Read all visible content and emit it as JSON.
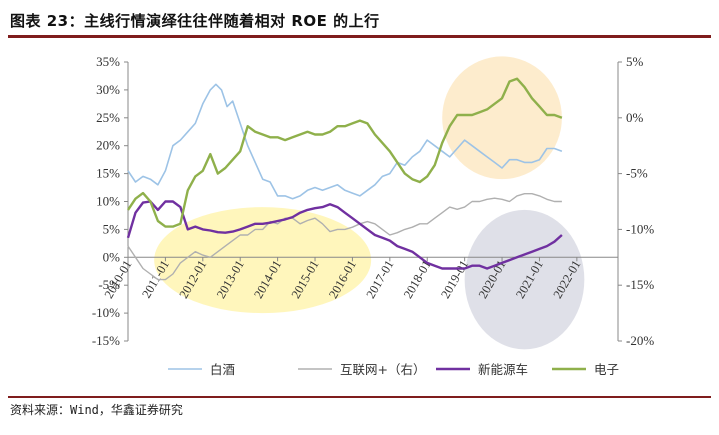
{
  "figure": {
    "title": "图表 23：主线行情演绎往往伴随着相对 ROE 的上行",
    "source": "资料来源：Wind，华鑫证券研究"
  },
  "colors": {
    "baijiu": "#9dc3e6",
    "internet": "#b0b0b0",
    "nev": "#7030a0",
    "electronics": "#8fb04b",
    "highlight_yellow": "#fff5b0",
    "highlight_orange": "#fde9c4",
    "highlight_gray": "#d9dbe4",
    "frame": "#7f1d1d"
  },
  "chart_data": {
    "type": "line",
    "x_range": [
      2010.0,
      2023.1
    ],
    "x_ticks": [
      {
        "x": 2010.0,
        "label": "2010-01"
      },
      {
        "x": 2011.0,
        "label": "2011-01"
      },
      {
        "x": 2012.0,
        "label": "2012-01"
      },
      {
        "x": 2013.0,
        "label": "2013-01"
      },
      {
        "x": 2014.0,
        "label": "2014-01"
      },
      {
        "x": 2015.0,
        "label": "2015-01"
      },
      {
        "x": 2016.0,
        "label": "2016-01"
      },
      {
        "x": 2017.0,
        "label": "2017-01"
      },
      {
        "x": 2018.0,
        "label": "2018-01"
      },
      {
        "x": 2019.0,
        "label": "2019-01"
      },
      {
        "x": 2020.0,
        "label": "2020-01"
      },
      {
        "x": 2021.0,
        "label": "2021-01"
      },
      {
        "x": 2022.0,
        "label": "2022-01"
      }
    ],
    "y_left": {
      "min": -15,
      "max": 35,
      "ticks": [
        -15,
        -10,
        -5,
        0,
        5,
        10,
        15,
        20,
        25,
        30,
        35
      ],
      "labels": [
        "-15%",
        "-10%",
        "-5%",
        "0%",
        "5%",
        "10%",
        "15%",
        "20%",
        "25%",
        "30%",
        "35%"
      ]
    },
    "y_right": {
      "min": -20,
      "max": 5,
      "ticks": [
        -20,
        -15,
        -10,
        -5,
        0,
        5
      ],
      "labels": [
        "-20%",
        "-15%",
        "-10%",
        "-5%",
        "0%",
        "5%"
      ]
    },
    "grid": false,
    "legend_position": "bottom",
    "series": [
      {
        "name": "白酒",
        "axis": "left",
        "color_key": "baijiu",
        "points": [
          [
            2010.0,
            15.5
          ],
          [
            2010.2,
            13.5
          ],
          [
            2010.4,
            14.5
          ],
          [
            2010.6,
            14.0
          ],
          [
            2010.8,
            13.0
          ],
          [
            2011.0,
            15.5
          ],
          [
            2011.2,
            20.0
          ],
          [
            2011.4,
            21.0
          ],
          [
            2011.6,
            22.5
          ],
          [
            2011.8,
            24.0
          ],
          [
            2012.0,
            27.5
          ],
          [
            2012.2,
            30.0
          ],
          [
            2012.35,
            31.0
          ],
          [
            2012.5,
            30.0
          ],
          [
            2012.65,
            27.0
          ],
          [
            2012.8,
            28.0
          ],
          [
            2013.0,
            24.0
          ],
          [
            2013.2,
            20.0
          ],
          [
            2013.4,
            17.0
          ],
          [
            2013.6,
            14.0
          ],
          [
            2013.8,
            13.5
          ],
          [
            2014.0,
            11.0
          ],
          [
            2014.2,
            11.0
          ],
          [
            2014.4,
            10.5
          ],
          [
            2014.6,
            11.0
          ],
          [
            2014.8,
            12.0
          ],
          [
            2015.0,
            12.5
          ],
          [
            2015.2,
            12.0
          ],
          [
            2015.4,
            12.5
          ],
          [
            2015.6,
            13.0
          ],
          [
            2015.8,
            12.0
          ],
          [
            2016.0,
            11.5
          ],
          [
            2016.2,
            11.0
          ],
          [
            2016.4,
            12.0
          ],
          [
            2016.6,
            13.0
          ],
          [
            2016.8,
            14.5
          ],
          [
            2017.0,
            15.0
          ],
          [
            2017.2,
            17.0
          ],
          [
            2017.4,
            16.5
          ],
          [
            2017.6,
            18.0
          ],
          [
            2017.8,
            19.0
          ],
          [
            2018.0,
            21.0
          ],
          [
            2018.2,
            20.0
          ],
          [
            2018.4,
            19.0
          ],
          [
            2018.6,
            18.0
          ],
          [
            2018.8,
            19.5
          ],
          [
            2019.0,
            21.0
          ],
          [
            2019.2,
            20.0
          ],
          [
            2019.4,
            19.0
          ],
          [
            2019.6,
            18.0
          ],
          [
            2019.8,
            17.0
          ],
          [
            2020.0,
            16.0
          ],
          [
            2020.2,
            17.5
          ],
          [
            2020.4,
            17.5
          ],
          [
            2020.6,
            17.0
          ],
          [
            2020.8,
            17.0
          ],
          [
            2021.0,
            17.5
          ],
          [
            2021.2,
            19.5
          ],
          [
            2021.4,
            19.5
          ],
          [
            2021.6,
            19.0
          ]
        ]
      },
      {
        "name": "互联网+（右）",
        "axis": "right",
        "color_key": "internet",
        "points": [
          [
            2010.0,
            -11.5
          ],
          [
            2010.2,
            -12.5
          ],
          [
            2010.4,
            -13.5
          ],
          [
            2010.6,
            -14.0
          ],
          [
            2010.8,
            -14.5
          ],
          [
            2011.0,
            -14.5
          ],
          [
            2011.2,
            -14.0
          ],
          [
            2011.4,
            -13.0
          ],
          [
            2011.6,
            -12.5
          ],
          [
            2011.8,
            -12.0
          ],
          [
            2012.0,
            -12.3
          ],
          [
            2012.2,
            -12.5
          ],
          [
            2012.4,
            -12.0
          ],
          [
            2012.6,
            -11.5
          ],
          [
            2012.8,
            -11.0
          ],
          [
            2013.0,
            -10.5
          ],
          [
            2013.2,
            -10.5
          ],
          [
            2013.4,
            -10.0
          ],
          [
            2013.6,
            -10.0
          ],
          [
            2013.8,
            -9.3
          ],
          [
            2014.0,
            -9.5
          ],
          [
            2014.2,
            -9.0
          ],
          [
            2014.4,
            -9.0
          ],
          [
            2014.6,
            -9.5
          ],
          [
            2014.8,
            -9.2
          ],
          [
            2015.0,
            -9.0
          ],
          [
            2015.2,
            -9.5
          ],
          [
            2015.4,
            -10.2
          ],
          [
            2015.6,
            -10.0
          ],
          [
            2015.8,
            -10.0
          ],
          [
            2016.0,
            -9.8
          ],
          [
            2016.2,
            -9.5
          ],
          [
            2016.4,
            -9.3
          ],
          [
            2016.6,
            -9.5
          ],
          [
            2016.8,
            -10.0
          ],
          [
            2017.0,
            -10.5
          ],
          [
            2017.2,
            -10.3
          ],
          [
            2017.4,
            -10.0
          ],
          [
            2017.6,
            -9.8
          ],
          [
            2017.8,
            -9.5
          ],
          [
            2018.0,
            -9.5
          ],
          [
            2018.2,
            -9.0
          ],
          [
            2018.4,
            -8.5
          ],
          [
            2018.6,
            -8.0
          ],
          [
            2018.8,
            -8.2
          ],
          [
            2019.0,
            -8.0
          ],
          [
            2019.2,
            -7.5
          ],
          [
            2019.4,
            -7.5
          ],
          [
            2019.6,
            -7.3
          ],
          [
            2019.8,
            -7.2
          ],
          [
            2020.0,
            -7.3
          ],
          [
            2020.2,
            -7.5
          ],
          [
            2020.4,
            -7.0
          ],
          [
            2020.6,
            -6.8
          ],
          [
            2020.8,
            -6.8
          ],
          [
            2021.0,
            -7.0
          ],
          [
            2021.2,
            -7.3
          ],
          [
            2021.4,
            -7.5
          ],
          [
            2021.6,
            -7.5
          ]
        ]
      },
      {
        "name": "新能源车",
        "axis": "left",
        "color_key": "nev",
        "points": [
          [
            2010.0,
            3.5
          ],
          [
            2010.2,
            8.0
          ],
          [
            2010.4,
            9.8
          ],
          [
            2010.6,
            10.0
          ],
          [
            2010.8,
            8.5
          ],
          [
            2011.0,
            10.0
          ],
          [
            2011.2,
            10.0
          ],
          [
            2011.4,
            9.0
          ],
          [
            2011.6,
            5.0
          ],
          [
            2011.8,
            5.5
          ],
          [
            2012.0,
            5.0
          ],
          [
            2012.2,
            4.8
          ],
          [
            2012.4,
            4.5
          ],
          [
            2012.6,
            4.4
          ],
          [
            2012.8,
            4.6
          ],
          [
            2013.0,
            5.0
          ],
          [
            2013.2,
            5.5
          ],
          [
            2013.4,
            6.0
          ],
          [
            2013.6,
            6.0
          ],
          [
            2013.8,
            6.2
          ],
          [
            2014.0,
            6.5
          ],
          [
            2014.2,
            6.8
          ],
          [
            2014.4,
            7.2
          ],
          [
            2014.6,
            8.0
          ],
          [
            2014.8,
            8.5
          ],
          [
            2015.0,
            8.8
          ],
          [
            2015.2,
            9.0
          ],
          [
            2015.4,
            9.5
          ],
          [
            2015.6,
            9.0
          ],
          [
            2015.8,
            8.0
          ],
          [
            2016.0,
            7.0
          ],
          [
            2016.2,
            6.0
          ],
          [
            2016.4,
            5.0
          ],
          [
            2016.6,
            4.0
          ],
          [
            2016.8,
            3.5
          ],
          [
            2017.0,
            3.0
          ],
          [
            2017.2,
            2.0
          ],
          [
            2017.4,
            1.5
          ],
          [
            2017.6,
            1.0
          ],
          [
            2017.8,
            0.0
          ],
          [
            2018.0,
            -1.0
          ],
          [
            2018.2,
            -1.5
          ],
          [
            2018.4,
            -2.0
          ],
          [
            2018.6,
            -2.0
          ],
          [
            2018.8,
            -2.0
          ],
          [
            2019.0,
            -2.0
          ],
          [
            2019.2,
            -1.5
          ],
          [
            2019.4,
            -1.5
          ],
          [
            2019.6,
            -2.0
          ],
          [
            2019.8,
            -1.5
          ],
          [
            2020.0,
            -1.0
          ],
          [
            2020.2,
            -0.5
          ],
          [
            2020.4,
            0.0
          ],
          [
            2020.6,
            0.5
          ],
          [
            2020.8,
            1.0
          ],
          [
            2021.0,
            1.5
          ],
          [
            2021.2,
            2.0
          ],
          [
            2021.4,
            2.8
          ],
          [
            2021.6,
            4.0
          ]
        ]
      },
      {
        "name": "电子",
        "axis": "left",
        "color_key": "electronics",
        "points": [
          [
            2010.0,
            8.5
          ],
          [
            2010.2,
            10.5
          ],
          [
            2010.4,
            11.5
          ],
          [
            2010.6,
            10.0
          ],
          [
            2010.8,
            6.5
          ],
          [
            2011.0,
            5.5
          ],
          [
            2011.2,
            5.5
          ],
          [
            2011.4,
            6.0
          ],
          [
            2011.6,
            12.0
          ],
          [
            2011.8,
            14.5
          ],
          [
            2012.0,
            15.5
          ],
          [
            2012.2,
            18.5
          ],
          [
            2012.4,
            15.0
          ],
          [
            2012.6,
            16.0
          ],
          [
            2012.8,
            17.5
          ],
          [
            2013.0,
            19.0
          ],
          [
            2013.2,
            23.5
          ],
          [
            2013.4,
            22.5
          ],
          [
            2013.6,
            22.0
          ],
          [
            2013.8,
            21.5
          ],
          [
            2014.0,
            21.5
          ],
          [
            2014.2,
            21.0
          ],
          [
            2014.4,
            21.5
          ],
          [
            2014.6,
            22.0
          ],
          [
            2014.8,
            22.5
          ],
          [
            2015.0,
            22.0
          ],
          [
            2015.2,
            22.0
          ],
          [
            2015.4,
            22.5
          ],
          [
            2015.6,
            23.5
          ],
          [
            2015.8,
            23.5
          ],
          [
            2016.0,
            24.0
          ],
          [
            2016.2,
            24.5
          ],
          [
            2016.4,
            24.0
          ],
          [
            2016.6,
            22.0
          ],
          [
            2016.8,
            20.5
          ],
          [
            2017.0,
            19.0
          ],
          [
            2017.2,
            17.0
          ],
          [
            2017.4,
            15.0
          ],
          [
            2017.6,
            14.0
          ],
          [
            2017.8,
            13.5
          ],
          [
            2018.0,
            14.5
          ],
          [
            2018.2,
            16.5
          ],
          [
            2018.4,
            20.5
          ],
          [
            2018.6,
            23.5
          ],
          [
            2018.8,
            25.5
          ],
          [
            2019.0,
            25.5
          ],
          [
            2019.2,
            25.5
          ],
          [
            2019.4,
            26.0
          ],
          [
            2019.6,
            26.5
          ],
          [
            2019.8,
            27.5
          ],
          [
            2020.0,
            28.5
          ],
          [
            2020.2,
            31.5
          ],
          [
            2020.4,
            32.0
          ],
          [
            2020.6,
            30.5
          ],
          [
            2020.8,
            28.5
          ],
          [
            2021.0,
            27.0
          ],
          [
            2021.2,
            25.5
          ],
          [
            2021.4,
            25.5
          ],
          [
            2021.6,
            25.0
          ]
        ]
      }
    ],
    "highlights": [
      {
        "color_key": "highlight_yellow",
        "center_x": 2013.6,
        "center_y_left": -0.5,
        "rx_years": 2.9,
        "ry_left": 9.5
      },
      {
        "color_key": "highlight_orange",
        "center_x": 2020.0,
        "center_y_left": 25.0,
        "rx_years": 1.6,
        "ry_left": 11.0
      },
      {
        "color_key": "highlight_gray",
        "center_x": 2020.6,
        "center_y_left": -4.0,
        "rx_years": 1.6,
        "ry_left": 12.5
      }
    ]
  }
}
